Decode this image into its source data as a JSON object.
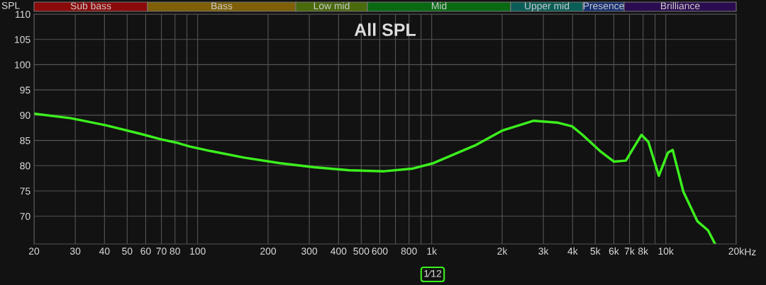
{
  "chart_data": {
    "type": "line",
    "title": "All SPL",
    "ylabel": "SPL",
    "x": [
      20,
      28.7,
      40.5,
      57,
      70,
      80.6,
      92.5,
      113.5,
      158,
      225,
      315,
      445,
      627,
      823,
      1017,
      1531,
      2012,
      2732,
      3470,
      3980,
      4410,
      5240,
      6010,
      6750,
      7880,
      8430,
      9340,
      10220,
      10710,
      11880,
      13650,
      15160,
      16250
    ],
    "series": [
      {
        "color": "#3cf01e",
        "values": [
          90.3,
          89.4,
          88.0,
          86.3,
          85.2,
          84.6,
          83.8,
          82.9,
          81.6,
          80.5,
          79.7,
          79.1,
          78.9,
          79.4,
          80.5,
          84.0,
          87.0,
          88.9,
          88.5,
          87.8,
          86.1,
          82.9,
          80.8,
          81.0,
          86.1,
          84.7,
          78.0,
          82.6,
          83.1,
          74.9,
          69.0,
          67.2,
          64.5
        ]
      }
    ],
    "log": "x",
    "xlim": [
      20,
      20000
    ],
    "xticks": [
      20,
      30,
      40,
      50,
      60,
      70,
      80,
      {
        "value": 90,
        "label": null
      },
      100,
      200,
      300,
      400,
      500,
      600,
      {
        "value": 700,
        "label": null
      },
      800,
      {
        "value": 900,
        "label": null
      },
      {
        "value": 1000,
        "label": "1k"
      },
      {
        "value": 2000,
        "label": "2k"
      },
      {
        "value": 3000,
        "label": "3k"
      },
      {
        "value": 4000,
        "label": "4k"
      },
      {
        "value": 5000,
        "label": "5k"
      },
      {
        "value": 6000,
        "label": "6k"
      },
      {
        "value": 7000,
        "label": "7k"
      },
      {
        "value": 8000,
        "label": "8k"
      },
      {
        "value": 9000,
        "label": null
      },
      {
        "value": 10000,
        "label": "10k"
      },
      {
        "value": 20000,
        "label": "20k"
      }
    ],
    "xlabel": "Hz",
    "ylim": [
      64.5,
      110
    ],
    "yticks": [
      70,
      75,
      80,
      85,
      90,
      95,
      100,
      105,
      110
    ],
    "grid": true,
    "marker": "none",
    "line_style": "solid",
    "annotations": [
      "Sub bass",
      "Bass",
      "Low mid",
      "Mid",
      "Upper mid",
      "Presence",
      "Brilliance",
      "1⁄12"
    ]
  }
}
